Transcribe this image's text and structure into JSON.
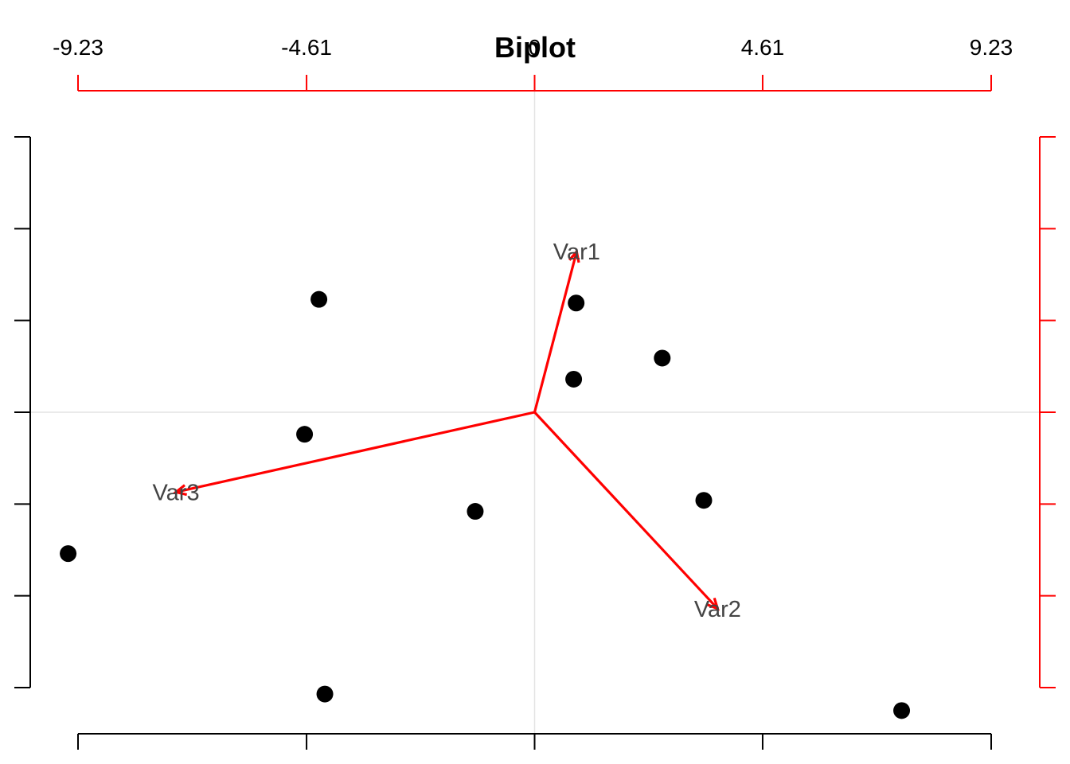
{
  "chart_data": {
    "type": "scatter",
    "title": "Biplot",
    "xlabel": "",
    "ylabel": "",
    "grid": false,
    "legend": "none",
    "origin_lines": true,
    "axes": {
      "bottom": {
        "range": [
          -9.23,
          9.23
        ],
        "ticks": [
          -9.23,
          -4.61,
          0,
          4.61,
          9.23
        ],
        "labels_visible": false,
        "color": "#000000"
      },
      "left": {
        "range": [
          -3.0,
          3.0
        ],
        "ticks": [
          -3,
          -2,
          -1,
          0,
          1,
          2,
          3
        ],
        "labels_visible": false,
        "color": "#000000"
      },
      "top": {
        "range": [
          -9.23,
          9.23
        ],
        "ticks": [
          -9.23,
          -4.61,
          0,
          4.61,
          9.23
        ],
        "tick_labels": [
          "-9.23",
          "-4.61",
          "0",
          "4.61",
          "9.23"
        ],
        "color": "#ff0000"
      },
      "right": {
        "range": [
          -3.0,
          3.0
        ],
        "ticks": [
          -3,
          -2,
          -1,
          0,
          1,
          2,
          3
        ],
        "labels_visible": false,
        "color": "#ff0000"
      }
    },
    "points": {
      "color": "#000000",
      "x": [
        -4.36,
        0.84,
        2.58,
        0.79,
        -4.65,
        -1.2,
        3.42,
        -9.43,
        -4.24,
        7.42
      ],
      "y": [
        1.23,
        1.19,
        0.59,
        0.36,
        -0.24,
        -1.08,
        -0.96,
        -1.54,
        -3.07,
        -3.25
      ]
    },
    "arrows": {
      "color": "#ff0000",
      "label_color": "#444444",
      "items": [
        {
          "label": "Var1",
          "x": 0.85,
          "y": 1.75
        },
        {
          "label": "Var2",
          "x": 3.7,
          "y": -2.14
        },
        {
          "label": "Var3",
          "x": -7.25,
          "y": -0.87
        }
      ]
    }
  }
}
